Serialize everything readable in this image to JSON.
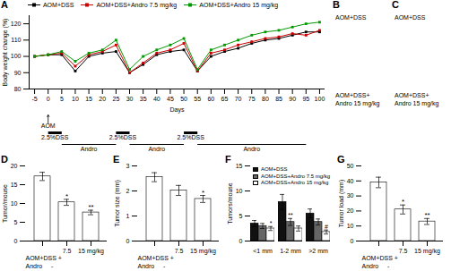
{
  "chart_data": [
    {
      "type": "line",
      "title": "A",
      "xlabel": "Days",
      "ylabel": "Body weight change (%)",
      "x": [
        -5,
        0,
        5,
        10,
        15,
        20,
        25,
        30,
        35,
        40,
        45,
        50,
        55,
        60,
        65,
        70,
        75,
        80,
        85,
        90,
        95,
        100
      ],
      "xlim": [
        -7,
        102
      ],
      "xticks": [
        -5,
        0,
        5,
        10,
        15,
        20,
        25,
        30,
        35,
        40,
        45,
        50,
        55,
        60,
        65,
        70,
        75,
        80,
        85,
        90,
        95,
        100
      ],
      "ylim": [
        80,
        125
      ],
      "yticks": [
        80,
        90,
        100,
        110,
        120
      ],
      "legend": "upper left",
      "marker": "square",
      "series": [
        {
          "name": "AOM+DSS",
          "color": "#000000",
          "values": [
            100,
            101,
            101,
            91,
            100,
            102,
            103,
            90,
            95,
            101,
            103,
            104,
            91,
            100,
            103,
            105,
            108,
            110,
            111,
            113,
            115,
            115
          ]
        },
        {
          "name": "AOM+DSS+Andro 7.5 mg/kg",
          "color": "#cc0000",
          "values": [
            100,
            101,
            102,
            94,
            101,
            103,
            107,
            90,
            96,
            102,
            104,
            108,
            91,
            102,
            104,
            107,
            109,
            111,
            112,
            114,
            113,
            116
          ]
        },
        {
          "name": "AOM+DSS+Andro 15 mg/kg",
          "color": "#009900",
          "values": [
            100,
            101,
            103,
            97,
            102,
            104,
            110,
            92,
            100,
            104,
            107,
            111,
            92,
            104,
            107,
            110,
            113,
            115,
            116,
            118,
            120,
            121
          ]
        }
      ],
      "annotations": [
        {
          "text": "AOM",
          "x": 0
        },
        {
          "text": "2.5%DSS",
          "spans": [
            [
              0,
              5
            ],
            [
              25,
              30
            ],
            [
              50,
              55
            ]
          ]
        },
        {
          "text": "Andro",
          "spans": [
            [
              5,
              25
            ],
            [
              30,
              50
            ],
            [
              55,
              95
            ]
          ]
        }
      ]
    },
    {
      "type": "image",
      "title": "B",
      "annotations": [
        "AOM+DSS",
        "AOM+DSS+\nAndro 15 mg/kg"
      ]
    },
    {
      "type": "image",
      "title": "C",
      "annotations": [
        "AOM+DSS",
        "AOM+DSS+\nAndro 15 mg/kg"
      ]
    },
    {
      "type": "bar",
      "title": "D",
      "ylabel": "Tumor/mouse",
      "categories": [
        null,
        "7.5",
        "15 mg/kg"
      ],
      "values": [
        17.2,
        10.3,
        7.6
      ],
      "errors": [
        1.1,
        0.8,
        0.6
      ],
      "color": "white",
      "ylim": [
        0,
        20
      ],
      "yticks": [
        0,
        5,
        10,
        15,
        20
      ],
      "significance": [
        null,
        "*",
        "**"
      ],
      "annotations": [
        "AOM+DSS +",
        "Andro     -"
      ]
    },
    {
      "type": "bar",
      "title": "E",
      "ylabel": "Tumor size (mm)",
      "categories": [
        null,
        "7.5",
        "15 mg/kg"
      ],
      "values": [
        2.55,
        2.02,
        1.68
      ],
      "errors": [
        0.18,
        0.2,
        0.14
      ],
      "color": "white",
      "ylim": [
        0,
        3
      ],
      "yticks": [
        0,
        1,
        2,
        3
      ],
      "significance": [
        null,
        null,
        "*"
      ],
      "annotations": [
        "AOM+DSS +",
        "Andro     -"
      ]
    },
    {
      "type": "bar",
      "title": "F",
      "ylabel": "Tumors/mouse",
      "categories": [
        "<1 mm",
        "1-2 mm",
        ">2 mm"
      ],
      "ylim": [
        0,
        15
      ],
      "yticks": [
        0,
        5,
        10,
        15
      ],
      "legend": "upper right",
      "series": [
        {
          "name": "AOM+DSS",
          "color": "#111111",
          "values": [
            3.5,
            7.8,
            5.5
          ],
          "errors": [
            0.6,
            1.5,
            0.9
          ]
        },
        {
          "name": "AOM+DSS+Andro 7.5 mg/kg",
          "color": "#666666",
          "values": [
            3.0,
            3.8,
            3.8
          ],
          "errors": [
            0.5,
            0.7,
            0.6
          ],
          "significance": [
            null,
            "**",
            null
          ]
        },
        {
          "name": "AOM+DSS+Andro 15 mg/kg",
          "color": "white",
          "values": [
            2.5,
            2.5,
            1.8
          ],
          "errors": [
            0.4,
            0.5,
            0.4
          ],
          "significance": [
            "*",
            null,
            "#"
          ]
        }
      ]
    },
    {
      "type": "bar",
      "title": "G",
      "ylabel": "Tumor load (mm)",
      "categories": [
        null,
        "7.5",
        "15 mg/kg"
      ],
      "values": [
        39.0,
        21.0,
        13.0
      ],
      "errors": [
        3.5,
        3.0,
        2.0
      ],
      "color": "white",
      "ylim": [
        0,
        50
      ],
      "yticks": [
        0,
        10,
        20,
        30,
        40,
        50
      ],
      "significance": [
        null,
        "*",
        "**"
      ],
      "annotations": [
        "AOM+DSS +",
        "Andro     -"
      ]
    }
  ]
}
